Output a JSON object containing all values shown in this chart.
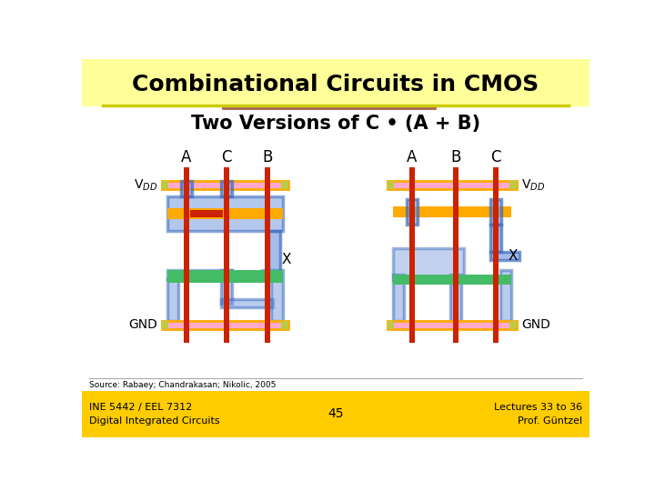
{
  "title": "Combinational Circuits in CMOS",
  "subtitle": "Two Versions of C • (A + B)",
  "title_bg": "#FFFF99",
  "body_bg": "#FFFFFF",
  "footer_bg": "#FFCC00",
  "footer_left": "INE 5442 / EEL 7312\nDigital Integrated Circuits",
  "footer_center": "45",
  "footer_right": "Lectures 33 to 36\nProf. Güntzel",
  "source_text": "Source: Rabaey; Chandrakasan; Nikolic, 2005",
  "color_red": "#CC2200",
  "color_orange": "#FFAA00",
  "color_blue": "#7799DD",
  "color_green": "#44BB66",
  "color_pink": "#FFAACC",
  "color_purple": "#AA88CC",
  "color_yg": "#BBCC44",
  "color_outline": "#3366BB",
  "lw_thin": 1.5
}
